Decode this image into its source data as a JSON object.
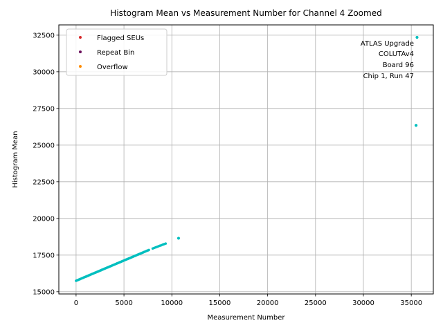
{
  "chart_data": {
    "type": "scatter",
    "title": "Histogram Mean vs Measurement Number for Channel 4 Zoomed",
    "xlabel": "Measurement Number",
    "ylabel": "Histogram Mean",
    "xlim": [
      -1800,
      37300
    ],
    "ylim": [
      14850,
      33200
    ],
    "xticks": [
      0,
      5000,
      10000,
      15000,
      20000,
      25000,
      30000,
      35000
    ],
    "yticks": [
      15000,
      17500,
      20000,
      22500,
      25000,
      27500,
      30000,
      32500
    ],
    "grid": true,
    "legend_position": "top-left",
    "legend": [
      {
        "label": "Flagged SEUs",
        "color": "#d62728"
      },
      {
        "label": "Repeat Bin",
        "color": "#6a0d5a"
      },
      {
        "label": "Overflow",
        "color": "#ff8c00"
      }
    ],
    "annotation": [
      "ATLAS Upgrade",
      "COLUTAv4",
      "Board 96",
      "Chip 1, Run 47"
    ],
    "series": [
      {
        "name": "Data",
        "color": "#00bfbf",
        "segments": [
          {
            "x_start": 0,
            "x_end": 7600,
            "y_start": 15750,
            "y_end": 17850,
            "step": 100
          },
          {
            "x_start": 8000,
            "x_end": 9400,
            "y_start": 17950,
            "y_end": 18300,
            "step": 150
          }
        ],
        "points": [
          {
            "x": 10700,
            "y": 18650
          },
          {
            "x": 35500,
            "y": 26350
          },
          {
            "x": 35600,
            "y": 32350
          }
        ]
      }
    ]
  }
}
